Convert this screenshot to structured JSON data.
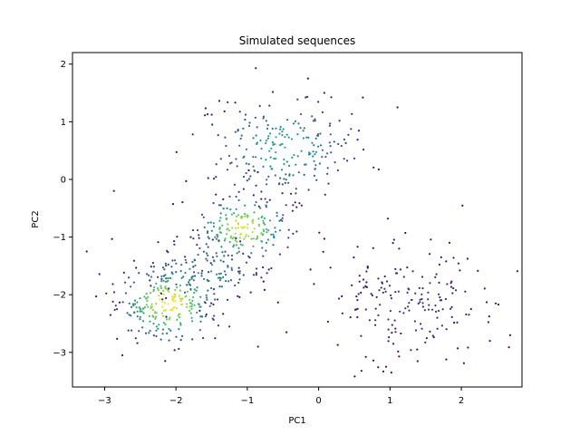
{
  "chart_data": {
    "type": "scatter",
    "title": "Simulated sequences",
    "xlabel": "PC1",
    "ylabel": "PC2",
    "xlim": [
      -3.45,
      2.85
    ],
    "ylim": [
      -3.6,
      2.2
    ],
    "xticks": [
      -3,
      -2,
      -1,
      0,
      1,
      2
    ],
    "yticks": [
      -3,
      -2,
      -1,
      0,
      1,
      2
    ],
    "xtick_labels": [
      "−3",
      "−2",
      "−1",
      "0",
      "1",
      "2"
    ],
    "ytick_labels": [
      "−3",
      "−2",
      "−1",
      "0",
      "1",
      "2"
    ],
    "grid": false,
    "legend": "none",
    "colormap": "viridis",
    "clusters": [
      {
        "center": [
          -2.1,
          -2.15
        ],
        "spread": [
          0.38,
          0.35
        ],
        "count": 260,
        "density_peak": 1.0
      },
      {
        "center": [
          -1.05,
          -0.85
        ],
        "spread": [
          0.35,
          0.32
        ],
        "count": 200,
        "density_peak": 0.95
      },
      {
        "center": [
          -0.5,
          0.55
        ],
        "spread": [
          0.55,
          0.45
        ],
        "count": 230,
        "density_peak": 0.6
      },
      {
        "center": [
          1.35,
          -2.15
        ],
        "spread": [
          0.6,
          0.5
        ],
        "count": 190,
        "density_peak": 0.15
      },
      {
        "center": [
          -1.6,
          -1.6
        ],
        "spread": [
          0.4,
          0.3
        ],
        "count": 120,
        "density_peak": 0.5
      }
    ],
    "outliers": [
      [
        -0.88,
        1.93
      ],
      [
        0.08,
        1.5
      ],
      [
        -1.32,
        1.18
      ],
      [
        -3.25,
        -1.25
      ],
      [
        -2.75,
        -3.05
      ],
      [
        -0.85,
        -2.9
      ],
      [
        0.6,
        -3.32
      ],
      [
        1.02,
        -3.35
      ],
      [
        2.52,
        -2.17
      ],
      [
        1.95,
        -2.93
      ],
      [
        -2.15,
        -3.15
      ],
      [
        -2.87,
        -0.2
      ],
      [
        -0.45,
        -2.65
      ],
      [
        2.4,
        -2.8
      ],
      [
        0.97,
        -0.68
      ],
      [
        -0.15,
        1.75
      ],
      [
        0.62,
        1.42
      ]
    ],
    "seed": 42
  }
}
